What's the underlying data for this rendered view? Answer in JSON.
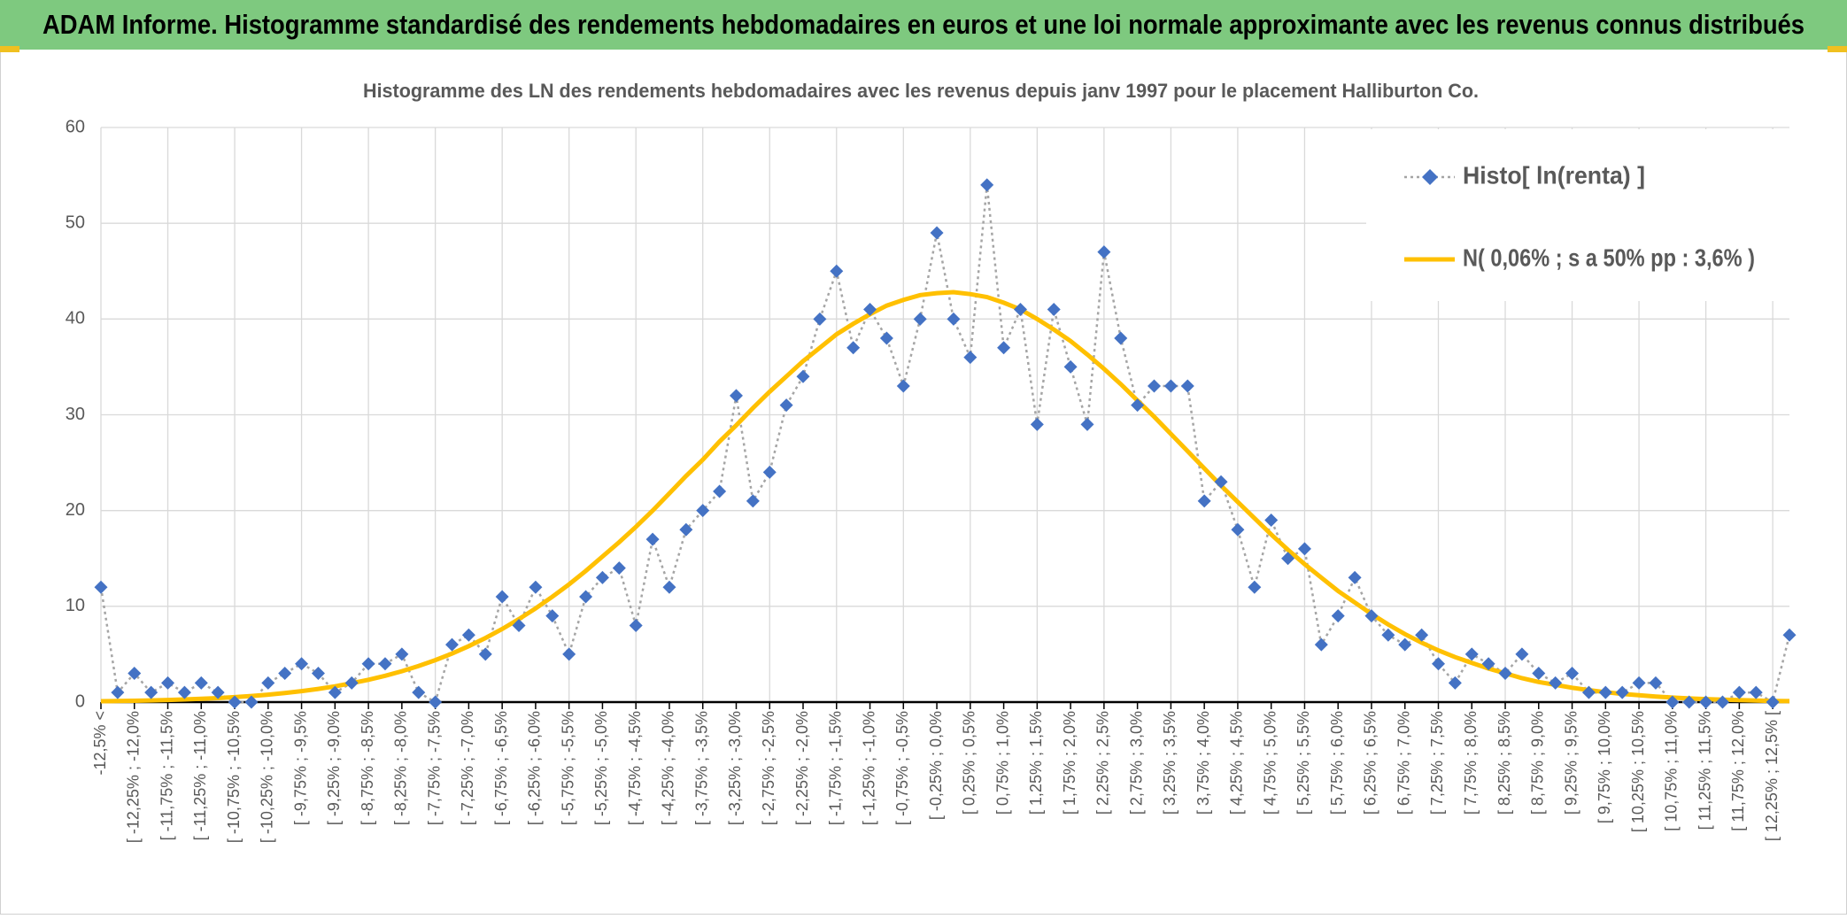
{
  "header_title": "ADAM Informe. Histogramme standardisé des rendements hebdomadaires en euros et une loi normale approximante avec les revenus connus distribués",
  "chart_data": {
    "type": "line",
    "title": "Histogramme des LN des rendements hebdomadaires avec les revenus depuis janv 1997 pour le placement Halliburton Co.",
    "categories": [
      "-12,5% <",
      null,
      "[ -12,25% ; -12,0%",
      null,
      "[ -11,75% ; -11,5%",
      null,
      "[ -11,25% ; -11,0%",
      null,
      "[ -10,75% ; -10,5%",
      null,
      "[ -10,25% ; -10,0%",
      null,
      "[ -9,75% ; -9,5%",
      null,
      "[ -9,25% ; -9,0%",
      null,
      "[ -8,75% ; -8,5%",
      null,
      "[ -8,25% ; -8,0%",
      null,
      "[ -7,75% ; -7,5%",
      null,
      "[ -7,25% ; -7,0%",
      null,
      "[ -6,75% ; -6,5%",
      null,
      "[ -6,25% ; -6,0%",
      null,
      "[ -5,75% ; -5,5%",
      null,
      "[ -5,25% ; -5,0%",
      null,
      "[ -4,75% ; -4,5%",
      null,
      "[ -4,25% ; -4,0%",
      null,
      "[ -3,75% ; -3,5%",
      null,
      "[ -3,25% ; -3,0%",
      null,
      "[ -2,75% ; -2,5%",
      null,
      "[ -2,25% ; -2,0%",
      null,
      "[ -1,75% ; -1,5%",
      null,
      "[ -1,25% ; -1,0%",
      null,
      "[ -0,75% ; -0,5%",
      null,
      "[ -0,25% ; 0,0%",
      null,
      "[ 0,25% ; 0,5%",
      null,
      "[ 0,75% ; 1,0%",
      null,
      "[ 1,25% ; 1,5%",
      null,
      "[ 1,75% ; 2,0%",
      null,
      "[ 2,25% ; 2,5%",
      null,
      "[ 2,75% ; 3,0%",
      null,
      "[ 3,25% ; 3,5%",
      null,
      "[ 3,75% ; 4,0%",
      null,
      "[ 4,25% ; 4,5%",
      null,
      "[ 4,75% ; 5,0%",
      null,
      "[ 5,25% ; 5,5%",
      null,
      "[ 5,75% ; 6,0%",
      null,
      "[ 6,25% ; 6,5%",
      null,
      "[ 6,75% ; 7,0%",
      null,
      "[ 7,25% ; 7,5%",
      null,
      "[ 7,75% ; 8,0%",
      null,
      "[ 8,25% ; 8,5%",
      null,
      "[ 8,75% ; 9,0%",
      null,
      "[ 9,25% ; 9,5%",
      null,
      "[ 9,75% ; 10,0%",
      null,
      "[ 10,25% ; 10,5%",
      null,
      "[ 10,75% ; 11,0%",
      null,
      "[ 11,25% ; 11,5%",
      null,
      "[ 11,75% ; 12,0%",
      null,
      "[ 12,25% ; 12,5% [",
      null
    ],
    "series": [
      {
        "name": "Histo[ ln(renta) ]",
        "color": "#4472c4",
        "line_color": "#a5a5a5",
        "values": [
          12,
          1,
          3,
          1,
          2,
          1,
          2,
          1,
          0,
          0,
          2,
          3,
          4,
          3,
          1,
          2,
          4,
          4,
          5,
          1,
          0,
          6,
          7,
          5,
          11,
          8,
          12,
          9,
          5,
          11,
          13,
          14,
          8,
          17,
          12,
          18,
          20,
          22,
          32,
          21,
          24,
          31,
          34,
          40,
          45,
          37,
          41,
          38,
          33,
          40,
          49,
          40,
          36,
          54,
          37,
          41,
          29,
          41,
          35,
          29,
          47,
          38,
          31,
          33,
          33,
          33,
          21,
          23,
          18,
          12,
          19,
          15,
          16,
          6,
          9,
          13,
          9,
          7,
          6,
          7,
          4,
          2,
          5,
          4,
          3,
          5,
          3,
          2,
          3,
          1,
          1,
          1,
          2,
          2,
          0,
          0,
          0,
          0,
          1,
          1,
          0,
          7
        ]
      },
      {
        "name": "N( 0,06% ; s a 50% pp : 3,6% )",
        "color": "#ffc000",
        "values": [
          0.09,
          0.11,
          0.14,
          0.18,
          0.22,
          0.28,
          0.34,
          0.42,
          0.52,
          0.64,
          0.78,
          0.95,
          1.15,
          1.38,
          1.65,
          1.97,
          2.33,
          2.75,
          3.23,
          3.77,
          4.38,
          5.07,
          5.84,
          6.69,
          7.63,
          8.66,
          9.78,
          11.0,
          12.3,
          13.7,
          15.2,
          16.7,
          18.3,
          20.0,
          21.8,
          23.6,
          25.3,
          27.2,
          28.9,
          30.7,
          32.4,
          34.0,
          35.6,
          37.0,
          38.4,
          39.5,
          40.5,
          41.4,
          42.0,
          42.5,
          42.7,
          42.8,
          42.6,
          42.3,
          41.7,
          41.0,
          40.0,
          38.9,
          37.7,
          36.3,
          34.8,
          33.2,
          31.5,
          29.8,
          28.0,
          26.2,
          24.4,
          22.6,
          20.9,
          19.2,
          17.5,
          15.9,
          14.4,
          13.0,
          11.6,
          10.4,
          9.2,
          8.1,
          7.1,
          6.2,
          5.4,
          4.7,
          4.1,
          3.5,
          3.0,
          2.5,
          2.1,
          1.8,
          1.5,
          1.25,
          1.04,
          0.86,
          0.71,
          0.58,
          0.47,
          0.38,
          0.31,
          0.25,
          0.2,
          0.16,
          0.12,
          0.1
        ]
      }
    ],
    "ylim": [
      0,
      60
    ],
    "yticks": [
      0,
      10,
      20,
      30,
      40,
      50,
      60
    ],
    "grid": true,
    "legend": "top-right"
  }
}
